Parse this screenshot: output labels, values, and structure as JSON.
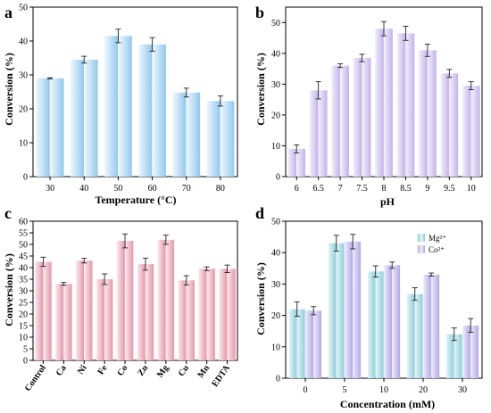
{
  "chart_data": [
    {
      "type": "bar",
      "panel_label": "a",
      "categories": [
        "30",
        "40",
        "50",
        "60",
        "70",
        "80"
      ],
      "series": [
        {
          "values": [
            29,
            34.5,
            41.5,
            39,
            24.8,
            22.3
          ]
        }
      ],
      "errors": [
        0.2,
        1.0,
        2.0,
        2.0,
        1.3,
        1.5
      ],
      "bar_pair": true,
      "xlabel": "Temperature (°C)",
      "ylabel": "Conversion (%)",
      "ylim": [
        0,
        50
      ],
      "yticks": [
        0,
        10,
        20,
        30,
        40,
        50
      ],
      "colors": {
        "bar_light": "#eef7fd",
        "bar_dark": "#92c8ee"
      },
      "grid": false
    },
    {
      "type": "bar",
      "panel_label": "b",
      "categories": [
        "6",
        "6.5",
        "7",
        "7.5",
        "8",
        "8.5",
        "9",
        "9.5",
        "10"
      ],
      "series": [
        {
          "values": [
            9,
            28,
            36,
            38.5,
            48,
            46.5,
            41,
            33.5,
            29.5
          ]
        }
      ],
      "errors": [
        1.3,
        2.8,
        0.6,
        1.2,
        2.3,
        2.3,
        2.0,
        1.3,
        1.3
      ],
      "bar_pair": true,
      "xlabel": "pH",
      "ylabel": "Conversion (%)",
      "ylim": [
        0,
        55
      ],
      "yticks": [
        0,
        10,
        20,
        30,
        40,
        50
      ],
      "colors": {
        "bar_light": "#f3effc",
        "bar_dark": "#c2b3ea"
      },
      "grid": false
    },
    {
      "type": "bar",
      "panel_label": "c",
      "categories": [
        "Control",
        "Ca",
        "Ni",
        "Fe",
        "Co",
        "Zn",
        "Mg",
        "Cu",
        "Mn",
        "EDTA"
      ],
      "series": [
        {
          "values": [
            42.5,
            33,
            43,
            35,
            51.5,
            41.5,
            52,
            34.5,
            39.5,
            39.5
          ]
        }
      ],
      "errors": [
        2.0,
        0.6,
        1.0,
        2.3,
        3.0,
        2.6,
        2.0,
        2.0,
        0.8,
        1.6
      ],
      "bar_pair": true,
      "xlabel": "",
      "ylabel": "Conversion (%)",
      "ylim": [
        0,
        60
      ],
      "yticks": [
        0,
        5,
        10,
        15,
        20,
        25,
        30,
        35,
        40,
        45,
        50,
        55,
        60
      ],
      "colors": {
        "bar_light": "#fbe9ee",
        "bar_dark": "#e596aa"
      },
      "grid": false
    },
    {
      "type": "bar",
      "panel_label": "d",
      "categories": [
        "0",
        "5",
        "10",
        "20",
        "30"
      ],
      "series": [
        {
          "name": "Mg²⁺",
          "values": [
            22,
            43,
            34,
            26.8,
            14
          ]
        },
        {
          "name": "Co²⁺",
          "values": [
            21.5,
            43.5,
            36,
            33,
            16.8
          ]
        }
      ],
      "errors": [
        [
          2.3,
          2.5,
          1.8,
          2.0,
          2.0
        ],
        [
          1.3,
          2.3,
          1.0,
          0.5,
          2.2
        ]
      ],
      "bar_pair": true,
      "xlabel": "Concentration (mM)",
      "ylabel": "Conversion (%)",
      "ylim": [
        0,
        50
      ],
      "yticks": [
        0,
        10,
        20,
        30,
        40,
        50
      ],
      "legend": "top-center",
      "colors": {
        "s1_light": "#e3f4f7",
        "s1_dark": "#8ccfdc",
        "s2_light": "#ece9fa",
        "s2_dark": "#b3a9e6"
      },
      "grid": false
    }
  ]
}
